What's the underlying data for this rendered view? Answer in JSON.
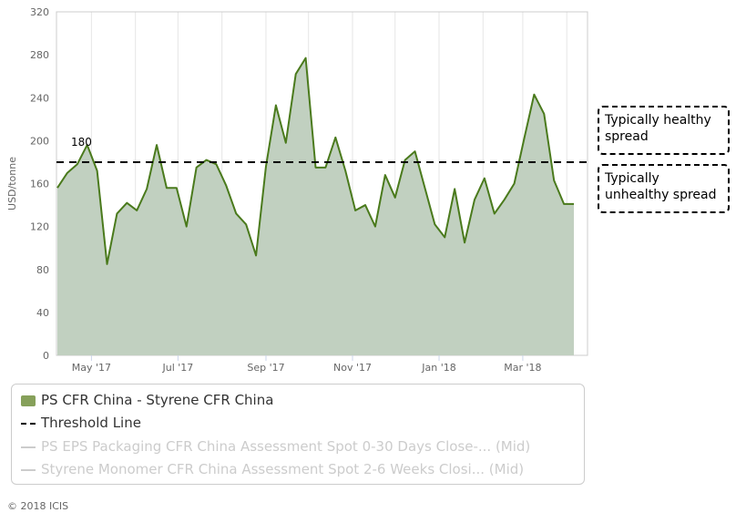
{
  "chart_data": {
    "type": "area",
    "ylabel": "USD/tonne",
    "ylim": [
      0,
      320
    ],
    "yticks": [
      "0",
      "40",
      "80",
      "120",
      "160",
      "200",
      "240",
      "280",
      "320"
    ],
    "xticks": [
      "May '17",
      "Jul '17",
      "Sep '17",
      "Nov '17",
      "Jan '18",
      "Mar '18"
    ],
    "series": [
      {
        "name": "PS CFR China - Styrene CFR China",
        "color": "#4a7a1c",
        "fill": "#c1d0c0",
        "x": [
          "2017-04-07",
          "2017-04-14",
          "2017-04-21",
          "2017-04-28",
          "2017-05-05",
          "2017-05-12",
          "2017-05-19",
          "2017-05-26",
          "2017-06-02",
          "2017-06-09",
          "2017-06-16",
          "2017-06-23",
          "2017-06-30",
          "2017-07-07",
          "2017-07-14",
          "2017-07-21",
          "2017-07-28",
          "2017-08-04",
          "2017-08-11",
          "2017-08-18",
          "2017-08-25",
          "2017-09-01",
          "2017-09-08",
          "2017-09-15",
          "2017-09-22",
          "2017-09-29",
          "2017-10-06",
          "2017-10-13",
          "2017-10-20",
          "2017-10-27",
          "2017-11-03",
          "2017-11-10",
          "2017-11-17",
          "2017-11-24",
          "2017-12-01",
          "2017-12-08",
          "2017-12-15",
          "2017-12-22",
          "2017-12-29",
          "2018-01-05",
          "2018-01-12",
          "2018-01-19",
          "2018-01-26",
          "2018-02-02",
          "2018-02-09",
          "2018-02-16",
          "2018-02-23",
          "2018-03-02",
          "2018-03-09",
          "2018-03-16",
          "2018-03-23",
          "2018-03-30",
          "2018-04-06"
        ],
        "values": [
          156,
          170,
          178,
          196,
          172,
          85,
          132,
          142,
          135,
          155,
          196,
          156,
          156,
          120,
          175,
          182,
          178,
          158,
          132,
          122,
          93,
          176,
          233,
          198,
          262,
          277,
          175,
          175,
          203,
          172,
          135,
          140,
          120,
          168,
          147,
          182,
          190,
          156,
          122,
          110,
          155,
          105,
          145,
          165,
          132,
          145,
          160,
          202,
          243,
          225,
          163,
          141,
          141
        ]
      },
      {
        "name": "Threshold Line",
        "type": "line",
        "dash": true,
        "color": "#000000",
        "value": 180,
        "label": "180"
      },
      {
        "name": "PS EPS Packaging CFR China Assessment Spot 0-30 Days Close-... (Mid)",
        "hidden": true
      },
      {
        "name": "Styrene Monomer CFR China Assessment Spot 2-6 Weeks Closi... (Mid)",
        "hidden": true
      }
    ],
    "grid": "vertical",
    "legend": "bottom"
  },
  "annotations": {
    "healthy": [
      "Typically healthy",
      "spread"
    ],
    "unhealthy": [
      "Typically",
      "unhealthy spread"
    ]
  },
  "copyright": "© 2018 ICIS"
}
